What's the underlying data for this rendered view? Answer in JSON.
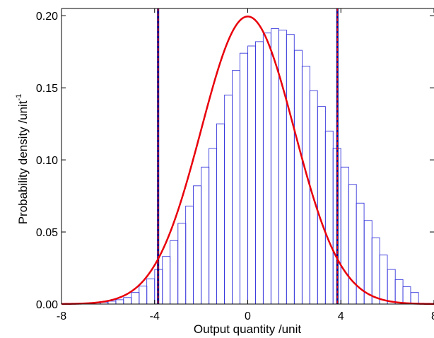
{
  "chart_data": {
    "type": "bar",
    "title": "",
    "xlabel": "Output quantity /unit",
    "ylabel": "Probability density /unit",
    "ylabel_superscript": "-1",
    "xlim": [
      -8,
      8
    ],
    "ylim": [
      0,
      0.205
    ],
    "xticks": [
      "-8",
      "-4",
      "0",
      "4",
      "8"
    ],
    "xtick_values": [
      -8,
      -4,
      0,
      4,
      8
    ],
    "yticks": [
      "0.00",
      "0.05",
      "0.10",
      "0.15",
      "0.20"
    ],
    "ytick_values": [
      0,
      0.05,
      0.1,
      0.15,
      0.2
    ],
    "grid": false,
    "histogram": {
      "bin_width": 0.3333,
      "bins": [
        {
          "x": -7.17,
          "y": 0.0002
        },
        {
          "x": -6.83,
          "y": 0.0005
        },
        {
          "x": -6.5,
          "y": 0.0008
        },
        {
          "x": -6.17,
          "y": 0.0013
        },
        {
          "x": -5.83,
          "y": 0.002
        },
        {
          "x": -5.5,
          "y": 0.003
        },
        {
          "x": -5.17,
          "y": 0.0045
        },
        {
          "x": -4.83,
          "y": 0.008
        },
        {
          "x": -4.5,
          "y": 0.0125
        },
        {
          "x": -4.17,
          "y": 0.0175
        },
        {
          "x": -3.83,
          "y": 0.024
        },
        {
          "x": -3.5,
          "y": 0.033
        },
        {
          "x": -3.17,
          "y": 0.044
        },
        {
          "x": -2.83,
          "y": 0.056
        },
        {
          "x": -2.5,
          "y": 0.068
        },
        {
          "x": -2.17,
          "y": 0.082
        },
        {
          "x": -1.83,
          "y": 0.095
        },
        {
          "x": -1.5,
          "y": 0.108
        },
        {
          "x": -1.17,
          "y": 0.125
        },
        {
          "x": -0.83,
          "y": 0.145
        },
        {
          "x": -0.5,
          "y": 0.162
        },
        {
          "x": -0.17,
          "y": 0.174
        },
        {
          "x": 0.17,
          "y": 0.179
        },
        {
          "x": 0.5,
          "y": 0.182
        },
        {
          "x": 0.83,
          "y": 0.188
        },
        {
          "x": 1.17,
          "y": 0.191
        },
        {
          "x": 1.5,
          "y": 0.19
        },
        {
          "x": 1.83,
          "y": 0.187
        },
        {
          "x": 2.17,
          "y": 0.176
        },
        {
          "x": 2.5,
          "y": 0.165
        },
        {
          "x": 2.83,
          "y": 0.148
        },
        {
          "x": 3.17,
          "y": 0.137
        },
        {
          "x": 3.5,
          "y": 0.12
        },
        {
          "x": 3.83,
          "y": 0.108
        },
        {
          "x": 4.17,
          "y": 0.095
        },
        {
          "x": 4.5,
          "y": 0.083
        },
        {
          "x": 4.83,
          "y": 0.07
        },
        {
          "x": 5.17,
          "y": 0.058
        },
        {
          "x": 5.5,
          "y": 0.046
        },
        {
          "x": 5.83,
          "y": 0.034
        },
        {
          "x": 6.17,
          "y": 0.024
        },
        {
          "x": 6.5,
          "y": 0.017
        },
        {
          "x": 6.83,
          "y": 0.012
        },
        {
          "x": 7.17,
          "y": 0.008
        }
      ]
    },
    "curve": {
      "type": "line",
      "model": "normal_pdf",
      "mean": 0,
      "std": 2,
      "color": "#e8000b"
    },
    "interval_lines": {
      "x": [
        -3.85,
        3.85
      ],
      "solid_color": "#00008b",
      "dashed_color": "#e8000b"
    },
    "colors": {
      "histogram_edge": "#3b3bdd",
      "curve": "#e8000b",
      "axis": "#000000"
    }
  }
}
